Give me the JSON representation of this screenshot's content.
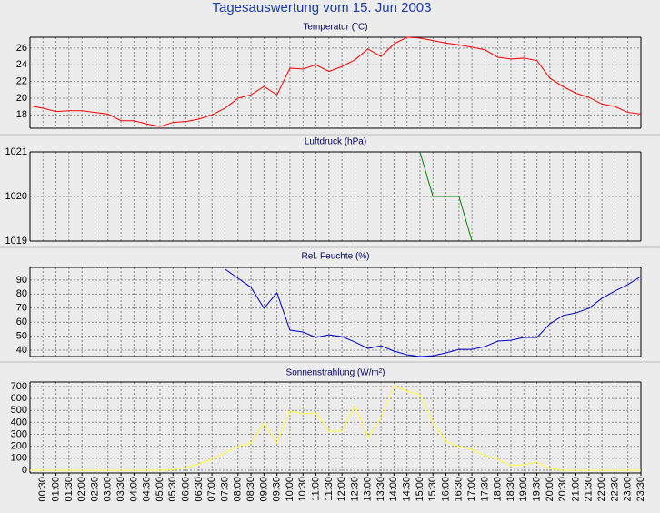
{
  "title": "Tagesauswertung vom 15. Jun 2003",
  "chart_data": [
    {
      "type": "line",
      "title": "Temperatur (°C)",
      "color": "#ff0000",
      "grid": true,
      "ylim": [
        16.4,
        27.3
      ],
      "yticks": [
        18,
        20,
        22,
        24,
        26
      ],
      "values": [
        19.1,
        18.8,
        18.4,
        18.5,
        18.5,
        18.3,
        18.1,
        17.3,
        17.3,
        16.9,
        16.6,
        17.1,
        17.2,
        17.5,
        18.0,
        18.8,
        20.0,
        20.4,
        21.4,
        20.4,
        23.6,
        23.5,
        24.0,
        23.2,
        23.8,
        24.6,
        25.9,
        25.0,
        26.5,
        27.3,
        27.2,
        26.9,
        26.6,
        26.4,
        26.1,
        25.8,
        24.9,
        24.7,
        24.8,
        24.5,
        22.4,
        21.4,
        20.6,
        20.1,
        19.3,
        19.0,
        18.3,
        18.1
      ]
    },
    {
      "type": "line",
      "title": "Luftdruck (hPa)",
      "color": "#008000",
      "grid": true,
      "ylim": [
        1019,
        1021
      ],
      "yticks": [
        1019,
        1020,
        1021
      ],
      "values": [
        null,
        null,
        null,
        null,
        null,
        null,
        null,
        null,
        null,
        null,
        null,
        null,
        null,
        null,
        null,
        null,
        null,
        null,
        null,
        null,
        null,
        null,
        null,
        null,
        null,
        null,
        null,
        null,
        null,
        null,
        1021,
        1020,
        1020,
        1020,
        1019,
        null,
        null,
        null,
        null,
        null,
        null,
        null,
        null,
        null,
        null,
        null,
        null,
        null
      ]
    },
    {
      "type": "line",
      "title": "Rel. Feuchte (%)",
      "color": "#0000cc",
      "grid": true,
      "ylim": [
        35.5,
        99
      ],
      "yticks": [
        40,
        50,
        60,
        70,
        80,
        90
      ],
      "values": [
        null,
        null,
        null,
        null,
        null,
        null,
        null,
        null,
        null,
        null,
        null,
        null,
        null,
        null,
        null,
        97.8,
        91.3,
        84.8,
        69.9,
        80.9,
        54.3,
        53,
        49.1,
        51,
        49.7,
        45.8,
        41.3,
        43.2,
        39.4,
        36.8,
        35.5,
        36.1,
        38.1,
        40.6,
        40.6,
        42.6,
        46.5,
        47.1,
        49.1,
        49.1,
        58.8,
        64.7,
        66.6,
        69.9,
        77,
        82.2,
        86.8,
        92.6
      ]
    },
    {
      "type": "line",
      "title": "Sonnenstrahlung (W/m²)",
      "color": "#ffff33",
      "grid": true,
      "ylim": [
        -23,
        738
      ],
      "yticks": [
        0,
        100,
        200,
        300,
        400,
        500,
        600,
        700
      ],
      "values": [
        0,
        0,
        0,
        0,
        0,
        0,
        0,
        0,
        0,
        0,
        0,
        5,
        23,
        53,
        91,
        145,
        198,
        228,
        396,
        228,
        495,
        472,
        479,
        327,
        327,
        540,
        274,
        434,
        708,
        662,
        632,
        396,
        243,
        198,
        175,
        122,
        91,
        38,
        46,
        68,
        15,
        0,
        0,
        0,
        0,
        0,
        0,
        0
      ],
      "categories": [
        null,
        "00:30",
        "01:00",
        "01:30",
        "02:00",
        "02:30",
        "03:00",
        "03:30",
        "04:00",
        "04:30",
        "05:00",
        "05:30",
        "06:00",
        "06:30",
        "07:00",
        "07:30",
        "08:00",
        "08:30",
        "09:00",
        "09:30",
        "10:00",
        "10:30",
        "11:00",
        "11:30",
        "12:00",
        "12:30",
        "13:00",
        "13:30",
        "14:00",
        "14:30",
        "15:00",
        "15:30",
        "16:00",
        "16:30",
        "17:00",
        "17:30",
        "18:00",
        "18:30",
        "19:00",
        "19:30",
        "20:00",
        "20:30",
        "21:00",
        "21:30",
        "22:00",
        "22:30",
        "23:00",
        "23:30"
      ]
    }
  ]
}
